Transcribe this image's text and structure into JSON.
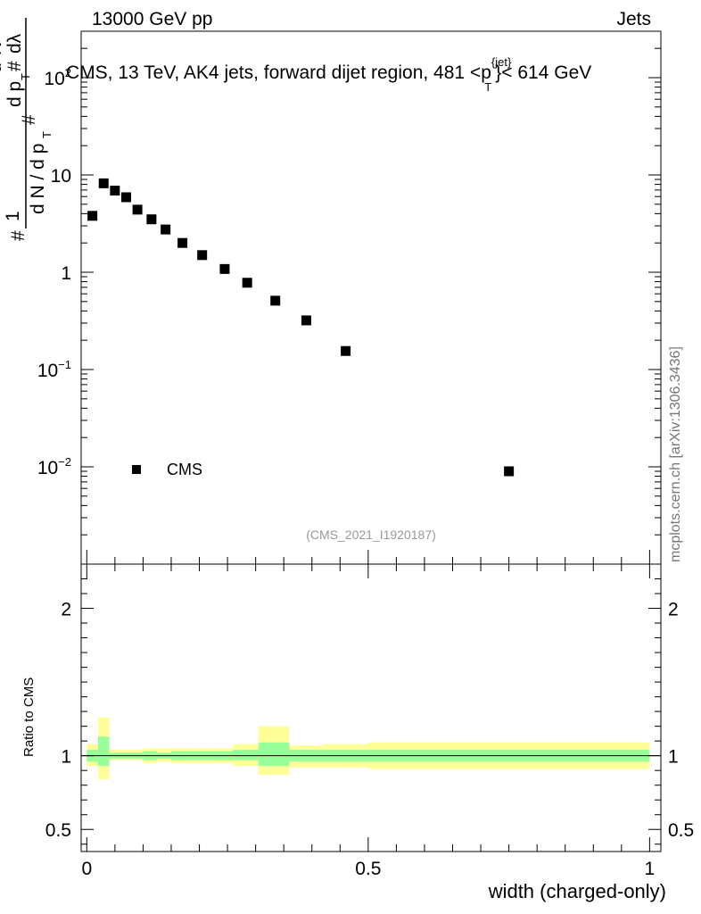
{
  "header": {
    "left": "13000 GeV pp",
    "right": "Jets"
  },
  "watermark": "mcplots.cern.ch [arXiv:1306.3436]",
  "analysis_tag": "(CMS_2021_I1920187)",
  "ylabel_parts": {
    "hash": "#",
    "one": "1",
    "dn": "d N / d p",
    "t": "T",
    "d2n": "d",
    "two": "2",
    "n": "N",
    "dpt": "d p",
    "dlambda": "dλ"
  },
  "colors": {
    "band_outer": "#ffff99",
    "band_inner": "#99ff99",
    "marker": "#000000"
  },
  "chart_data": [
    {
      "type": "scatter",
      "title_parts": {
        "main": "CMS, 13 TeV, AK4 jets, forward dijet region, 481 <p",
        "sup": "{jet}",
        "sub": "T",
        "end": "}< 614 GeV"
      },
      "yscale": "log",
      "ylim": [
        0.001,
        300
      ],
      "xlim": [
        -0.01,
        1.02
      ],
      "y_ticks": [
        {
          "value": 0.01,
          "label": "10",
          "exp": "−2"
        },
        {
          "value": 0.1,
          "label": "10",
          "exp": "−1"
        },
        {
          "value": 1,
          "label": "1",
          "exp": ""
        },
        {
          "value": 10,
          "label": "10",
          "exp": ""
        },
        {
          "value": 100,
          "label": "10",
          "exp": "2"
        }
      ],
      "legend": {
        "label": "CMS",
        "position": "bottom-left"
      },
      "series": [
        {
          "name": "CMS",
          "x": [
            0.01,
            0.03,
            0.05,
            0.07,
            0.09,
            0.115,
            0.14,
            0.17,
            0.205,
            0.245,
            0.285,
            0.335,
            0.39,
            0.46,
            0.75
          ],
          "y": [
            3.8,
            8.2,
            6.9,
            5.9,
            4.4,
            3.5,
            2.75,
            2.0,
            1.5,
            1.08,
            0.78,
            0.51,
            0.32,
            0.155,
            0.009
          ]
        }
      ]
    },
    {
      "type": "area",
      "ylabel": "Ratio to CMS",
      "xlabel": "width (charged-only)",
      "ylim": [
        0.35,
        2.3
      ],
      "xlim": [
        -0.01,
        1.02
      ],
      "y_ticks": [
        {
          "value": 0.5,
          "label": "0.5"
        },
        {
          "value": 1,
          "label": "1"
        },
        {
          "value": 2,
          "label": "2"
        }
      ],
      "x_ticks": [
        {
          "value": 0,
          "label": "0"
        },
        {
          "value": 0.5,
          "label": "0.5"
        },
        {
          "value": 1,
          "label": "1"
        }
      ],
      "bins": [
        {
          "lo": 0.0,
          "hi": 0.02,
          "outer": [
            0.93,
            1.08
          ],
          "inner": [
            0.96,
            1.04
          ]
        },
        {
          "lo": 0.02,
          "hi": 0.04,
          "outer": [
            0.84,
            1.26
          ],
          "inner": [
            0.93,
            1.13
          ]
        },
        {
          "lo": 0.04,
          "hi": 0.06,
          "outer": [
            0.97,
            1.04
          ],
          "inner": [
            0.98,
            1.02
          ]
        },
        {
          "lo": 0.06,
          "hi": 0.08,
          "outer": [
            0.97,
            1.04
          ],
          "inner": [
            0.98,
            1.02
          ]
        },
        {
          "lo": 0.08,
          "hi": 0.1,
          "outer": [
            0.97,
            1.04
          ],
          "inner": [
            0.98,
            1.02
          ]
        },
        {
          "lo": 0.1,
          "hi": 0.125,
          "outer": [
            0.95,
            1.05
          ],
          "inner": [
            0.97,
            1.03
          ]
        },
        {
          "lo": 0.125,
          "hi": 0.15,
          "outer": [
            0.96,
            1.05
          ],
          "inner": [
            0.98,
            1.02
          ]
        },
        {
          "lo": 0.15,
          "hi": 0.19,
          "outer": [
            0.95,
            1.05
          ],
          "inner": [
            0.97,
            1.03
          ]
        },
        {
          "lo": 0.19,
          "hi": 0.22,
          "outer": [
            0.95,
            1.05
          ],
          "inner": [
            0.97,
            1.03
          ]
        },
        {
          "lo": 0.22,
          "hi": 0.26,
          "outer": [
            0.95,
            1.05
          ],
          "inner": [
            0.97,
            1.03
          ]
        },
        {
          "lo": 0.26,
          "hi": 0.305,
          "outer": [
            0.93,
            1.08
          ],
          "inner": [
            0.97,
            1.04
          ]
        },
        {
          "lo": 0.305,
          "hi": 0.36,
          "outer": [
            0.87,
            1.2
          ],
          "inner": [
            0.93,
            1.09
          ]
        },
        {
          "lo": 0.36,
          "hi": 0.42,
          "outer": [
            0.92,
            1.07
          ],
          "inner": [
            0.96,
            1.04
          ]
        },
        {
          "lo": 0.42,
          "hi": 0.5,
          "outer": [
            0.92,
            1.08
          ],
          "inner": [
            0.96,
            1.04
          ]
        },
        {
          "lo": 0.5,
          "hi": 1.0,
          "outer": [
            0.91,
            1.09
          ],
          "inner": [
            0.96,
            1.04
          ]
        }
      ],
      "reference_line": 1
    }
  ]
}
